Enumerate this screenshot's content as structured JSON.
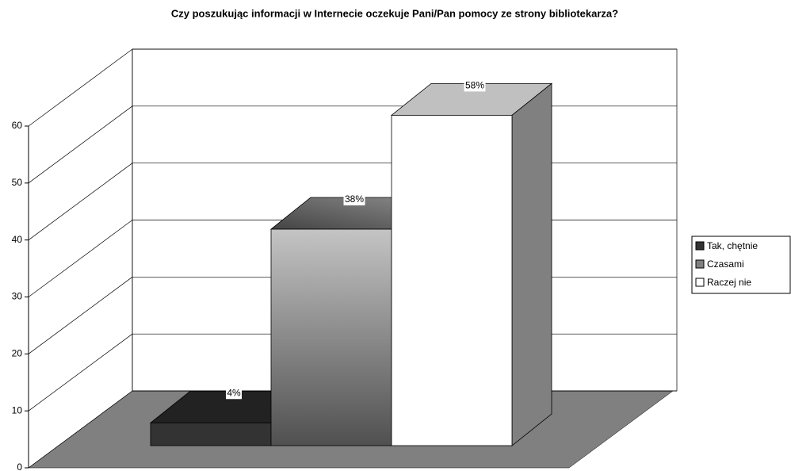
{
  "chart_data": {
    "type": "bar3d",
    "title": "Czy poszukując informacji w Internecie oczekuje Pani/Pan pomocy ze strony bibliotekarza?",
    "series": [
      {
        "name": "Tak, chętnie",
        "color": "#333333",
        "values": [
          4
        ],
        "value_labels": [
          "4%"
        ]
      },
      {
        "name": "Czasami",
        "color": "#808080",
        "values": [
          38
        ],
        "value_labels": [
          "38%"
        ]
      },
      {
        "name": "Raczej nie",
        "color": "#ffffff",
        "values": [
          58
        ],
        "value_labels": [
          "58%"
        ]
      }
    ],
    "ylim": [
      0,
      60
    ],
    "yticks": [
      0,
      10,
      20,
      30,
      40,
      50,
      60
    ],
    "grid": true,
    "legend": "right"
  }
}
